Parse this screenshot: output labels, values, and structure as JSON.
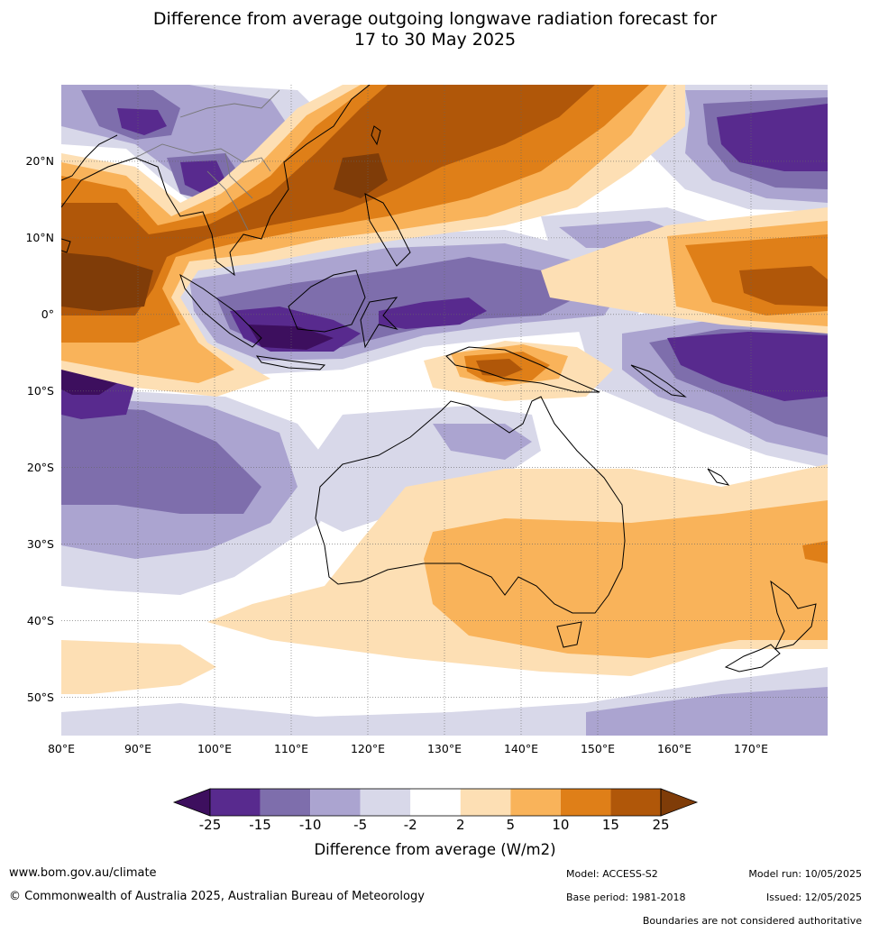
{
  "title": {
    "line1": "Difference from average outgoing longwave radiation forecast for",
    "line2": "17 to 30 May 2025"
  },
  "map": {
    "lon_range": [
      80,
      180
    ],
    "lat_range": [
      -55,
      30
    ],
    "lat_labels": [
      "20°N",
      "10°N",
      "0°",
      "10°S",
      "20°S",
      "30°S",
      "40°S",
      "50°S"
    ],
    "lon_labels": [
      "80°E",
      "90°E",
      "100°E",
      "110°E",
      "120°E",
      "130°E",
      "140°E",
      "150°E",
      "160°E",
      "170°E"
    ],
    "features": [
      "gridlines",
      "coastlines",
      "country-boundaries"
    ]
  },
  "legend": {
    "tick_labels": [
      "-25",
      "-15",
      "-10",
      "-5",
      "-2",
      "2",
      "5",
      "10",
      "15",
      "25"
    ],
    "colors": [
      "#3d0f5e",
      "#582a8e",
      "#7e6eac",
      "#aba4d0",
      "#d8d8e9",
      "#ffffff",
      "#fddfb4",
      "#f9b35a",
      "#df7f18",
      "#b05709",
      "#7f3c08"
    ],
    "title": "Difference from average (W/m2)"
  },
  "footer": {
    "website": "www.bom.gov.au/climate",
    "copyright": "© Commonwealth of Australia 2025, Australian Bureau of Meteorology",
    "model": "Model: ACCESS-S2",
    "base_period": "Base period: 1981-2018",
    "model_run": "Model run: 10/05/2025",
    "issued": "Issued: 12/05/2025",
    "disclaimer": "Boundaries are not considered authoritative"
  }
}
